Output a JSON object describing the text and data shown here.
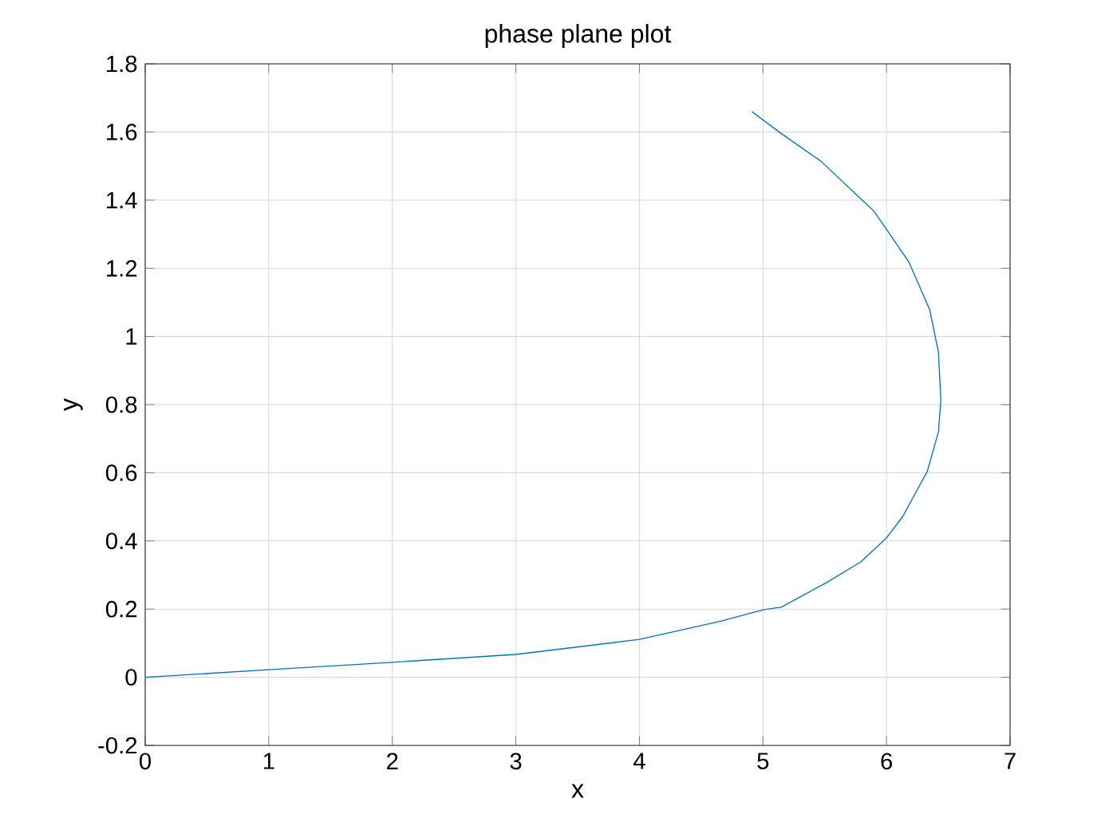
{
  "chart_data": {
    "type": "line",
    "title": "phase plane plot",
    "xlabel": "x",
    "ylabel": "y",
    "x": [
      0,
      1,
      2,
      3,
      4,
      4.65,
      5,
      5.15,
      5.51,
      5.79,
      6.0,
      6.13,
      6.33,
      6.42,
      6.44,
      6.42,
      6.35,
      6.18,
      5.9,
      5.47,
      5.13,
      4.91
    ],
    "series": [
      {
        "color": "#0072bd",
        "values": [
          0,
          0.022,
          0.044,
          0.067,
          0.111,
          0.164,
          0.198,
          0.206,
          0.277,
          0.338,
          0.409,
          0.471,
          0.604,
          0.72,
          0.814,
          0.954,
          1.078,
          1.219,
          1.367,
          1.514,
          1.6,
          1.66
        ]
      }
    ],
    "xlim": [
      0,
      7
    ],
    "ylim": [
      -0.2,
      1.8
    ],
    "xticks": [
      0,
      1,
      2,
      3,
      4,
      5,
      6,
      7
    ],
    "yticks": [
      -0.2,
      0,
      0.2,
      0.4,
      0.6,
      0.8,
      1,
      1.2,
      1.4,
      1.6,
      1.8
    ],
    "grid": true,
    "marker": "none",
    "line_style": "solid"
  }
}
